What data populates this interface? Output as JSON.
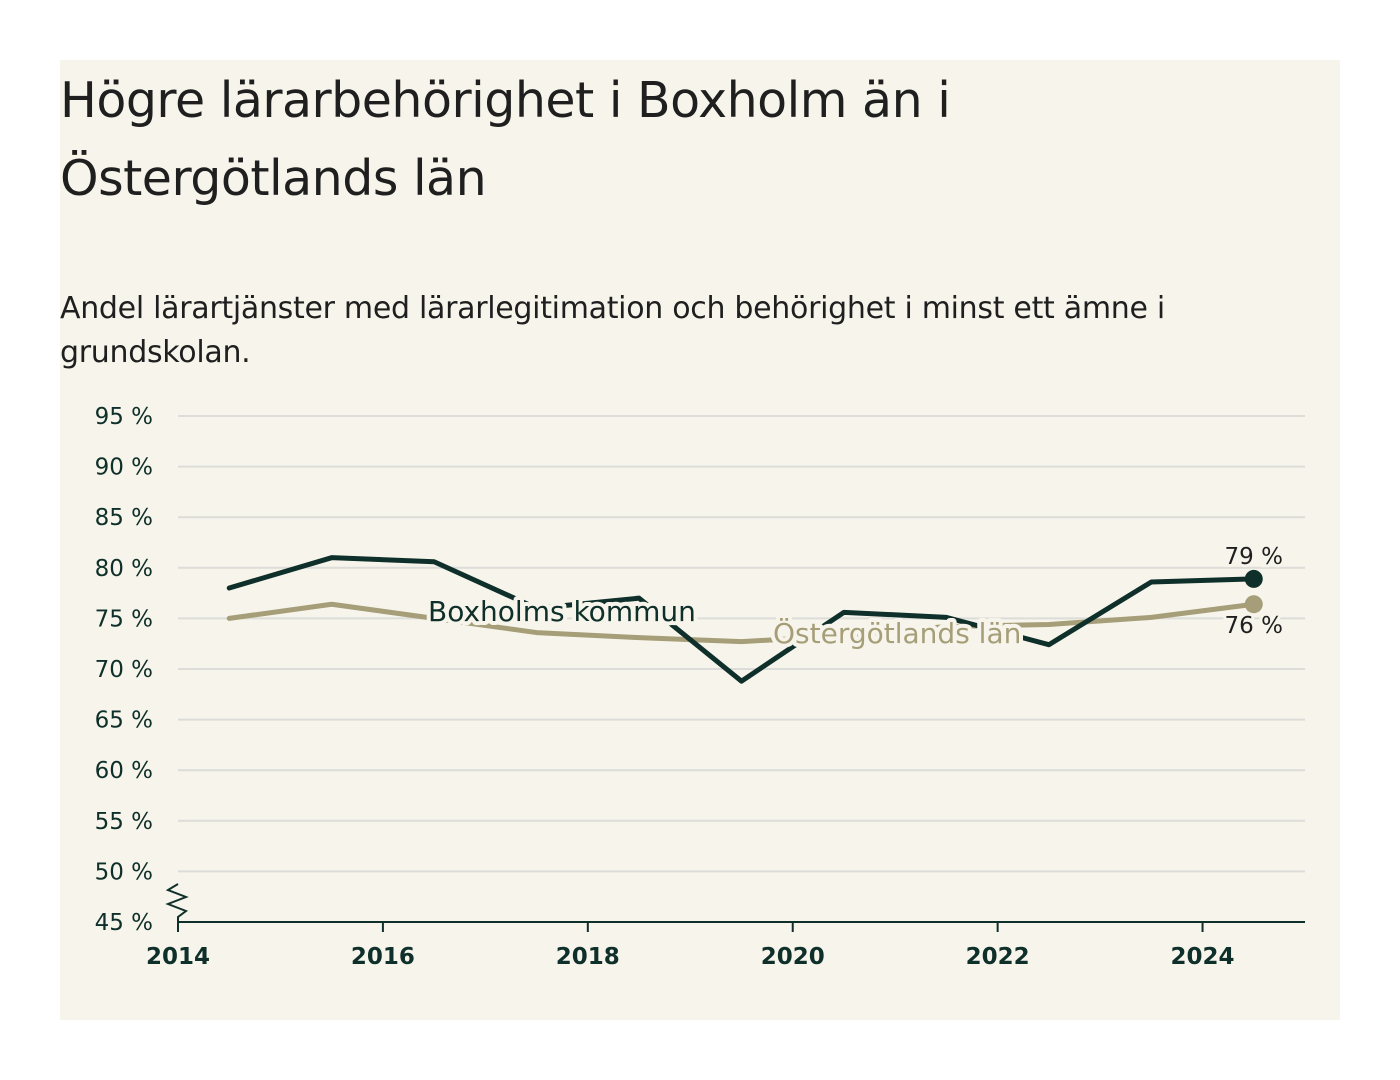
{
  "title": "Högre lärarbehörighet i Boxholm än i Östergötlands län",
  "subtitle": "Andel lärartjänster med lärarlegitimation och behörighet i minst ett ämne i grundskolan.",
  "colors": {
    "background": "#f7f5eb",
    "boxholm": "#0f2f2a",
    "ostergotland": "#a59e78",
    "grid": "#dcdcd8",
    "axis": "#0f2f2a"
  },
  "chart_data": {
    "type": "line",
    "title": "Högre lärarbehörighet i Boxholm än i Östergötlands län",
    "subtitle": "Andel lärartjänster med lärarlegitimation och behörighet i minst ett ämne i grundskolan.",
    "xlabel": "",
    "ylabel": "",
    "x": [
      2014.5,
      2015.5,
      2016.5,
      2017.5,
      2018.5,
      2019.5,
      2020.5,
      2021.5,
      2022.5,
      2023.5,
      2024.5
    ],
    "xlim": [
      2014,
      2025
    ],
    "ylim": [
      45,
      95
    ],
    "y_axis_break": true,
    "y_ticks": [
      45,
      50,
      55,
      60,
      65,
      70,
      75,
      80,
      85,
      90,
      95
    ],
    "y_tick_labels": [
      "45 %",
      "50 %",
      "55 %",
      "60 %",
      "65 %",
      "70 %",
      "75 %",
      "80 %",
      "85 %",
      "90 %",
      "95 %"
    ],
    "x_ticks": [
      2014,
      2016,
      2018,
      2020,
      2022,
      2024
    ],
    "x_tick_labels": [
      "2014",
      "2016",
      "2018",
      "2020",
      "2022",
      "2024"
    ],
    "grid": true,
    "legend": "inline labels",
    "series": [
      {
        "name": "Boxholms kommun",
        "values": [
          78.0,
          81.0,
          80.6,
          76.0,
          77.0,
          68.8,
          75.6,
          75.1,
          72.4,
          78.6,
          78.9
        ],
        "color": "#0f2f2a",
        "end_label": "79 %"
      },
      {
        "name": "Östergötlands län",
        "values": [
          75.0,
          76.4,
          75.0,
          73.6,
          73.1,
          72.7,
          73.3,
          74.2,
          74.4,
          75.1,
          76.4
        ],
        "color": "#a59e78",
        "end_label": "76 %"
      }
    ]
  }
}
